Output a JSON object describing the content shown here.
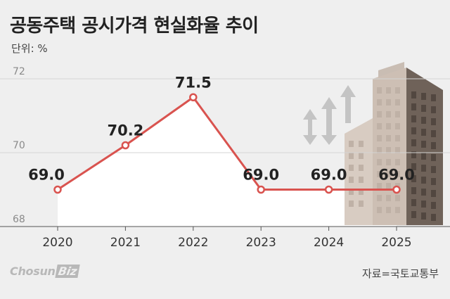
{
  "header": {
    "title": "공동주택 공시가격 현실화율 추이",
    "unit": "단위: %"
  },
  "footer": {
    "source": "자료=국토교통부",
    "brand_main": "Chosun",
    "brand_box": "Biz"
  },
  "colors": {
    "line": "#d9534f",
    "background": "#efefef",
    "plot_fill": "#ffffff",
    "axis": "#555555"
  },
  "illustration": "apartment-building-with-up-down-arrows",
  "chart_data": {
    "type": "line",
    "title": "공동주택 공시가격 현실화율 추이",
    "categories": [
      "2020",
      "2021",
      "2022",
      "2023",
      "2024",
      "2025"
    ],
    "values": [
      69.0,
      70.2,
      71.5,
      69.0,
      69.0,
      69.0
    ],
    "data_labels": [
      "69.0",
      "70.2",
      "71.5",
      "69.0",
      "69.0",
      "69.0"
    ],
    "yticks": [
      "72",
      "70",
      "68"
    ],
    "ylim": [
      68,
      72
    ],
    "xlabel": "",
    "ylabel": "",
    "grid": true,
    "legend": "none"
  }
}
